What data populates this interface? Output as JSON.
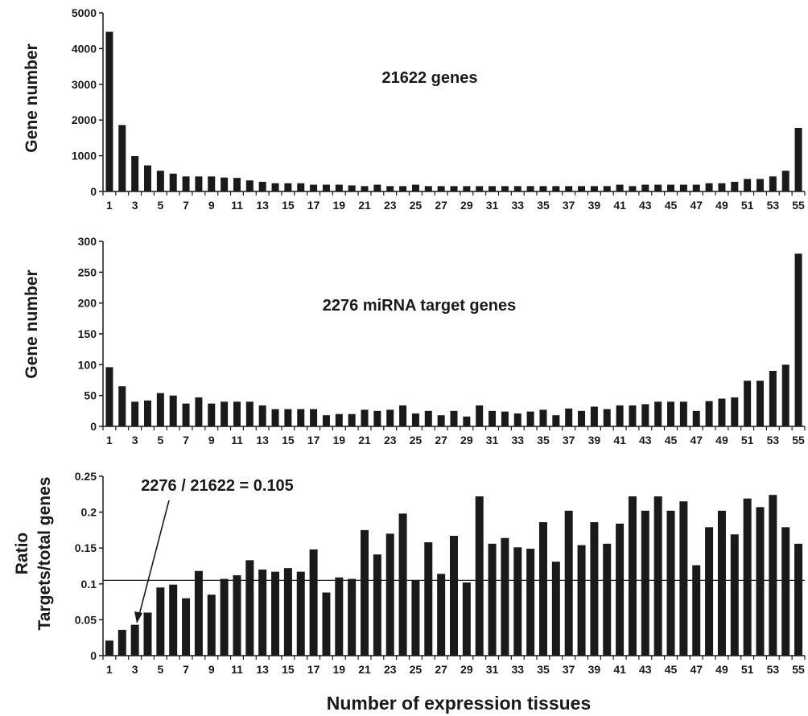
{
  "chart_data": [
    {
      "type": "bar",
      "annotation": "21622 genes",
      "ylabel": "Gene number",
      "xlabel": "",
      "ylim": [
        0,
        5000
      ],
      "yticks": [
        0,
        1000,
        2000,
        3000,
        4000,
        5000
      ],
      "x": [
        1,
        2,
        3,
        4,
        5,
        6,
        7,
        8,
        9,
        10,
        11,
        12,
        13,
        14,
        15,
        16,
        17,
        18,
        19,
        20,
        21,
        22,
        23,
        24,
        25,
        26,
        27,
        28,
        29,
        30,
        31,
        32,
        33,
        34,
        35,
        36,
        37,
        38,
        39,
        40,
        41,
        42,
        43,
        44,
        45,
        46,
        47,
        48,
        49,
        50,
        51,
        52,
        53,
        54,
        55
      ],
      "xtick_labels": [
        "1",
        "3",
        "5",
        "7",
        "9",
        "11",
        "13",
        "15",
        "17",
        "19",
        "21",
        "23",
        "25",
        "27",
        "29",
        "31",
        "33",
        "35",
        "37",
        "39",
        "41",
        "43",
        "45",
        "47",
        "49",
        "51",
        "53",
        "55"
      ],
      "values": [
        4470,
        1860,
        990,
        730,
        580,
        500,
        420,
        420,
        420,
        390,
        380,
        310,
        270,
        230,
        230,
        230,
        190,
        190,
        190,
        170,
        150,
        190,
        150,
        150,
        190,
        150,
        150,
        150,
        150,
        150,
        150,
        150,
        150,
        150,
        150,
        150,
        150,
        150,
        150,
        150,
        190,
        150,
        190,
        190,
        190,
        190,
        190,
        230,
        230,
        270,
        350,
        350,
        420,
        580,
        1780
      ]
    },
    {
      "type": "bar",
      "annotation": "2276 miRNA target genes",
      "ylabel": "Gene number",
      "xlabel": "",
      "ylim": [
        0,
        300
      ],
      "yticks": [
        0,
        50,
        100,
        150,
        200,
        250,
        300
      ],
      "x": [
        1,
        2,
        3,
        4,
        5,
        6,
        7,
        8,
        9,
        10,
        11,
        12,
        13,
        14,
        15,
        16,
        17,
        18,
        19,
        20,
        21,
        22,
        23,
        24,
        25,
        26,
        27,
        28,
        29,
        30,
        31,
        32,
        33,
        34,
        35,
        36,
        37,
        38,
        39,
        40,
        41,
        42,
        43,
        44,
        45,
        46,
        47,
        48,
        49,
        50,
        51,
        52,
        53,
        54,
        55
      ],
      "xtick_labels": [
        "1",
        "3",
        "5",
        "7",
        "9",
        "11",
        "13",
        "15",
        "17",
        "19",
        "21",
        "23",
        "25",
        "27",
        "29",
        "31",
        "33",
        "35",
        "37",
        "39",
        "41",
        "43",
        "45",
        "47",
        "49",
        "51",
        "53",
        "55"
      ],
      "values": [
        96,
        65,
        40,
        42,
        54,
        50,
        37,
        47,
        37,
        40,
        40,
        40,
        34,
        28,
        28,
        28,
        28,
        18,
        20,
        20,
        27,
        25,
        27,
        34,
        21,
        25,
        18,
        25,
        16,
        34,
        25,
        24,
        21,
        24,
        27,
        18,
        29,
        25,
        32,
        28,
        34,
        34,
        36,
        40,
        40,
        40,
        25,
        41,
        45,
        47,
        74,
        74,
        90,
        100,
        280
      ]
    },
    {
      "type": "bar",
      "annotation": "2276 / 21622 = 0.105",
      "ylabel": "Ratio",
      "ylabel2": "Targets/total genes",
      "xlabel": "Number of expression tissues",
      "ylim": [
        0,
        0.25
      ],
      "yticks": [
        "0",
        "0.05",
        "0.1",
        "0.15",
        "0.2",
        "0.25"
      ],
      "reference_line": 0.105,
      "x": [
        1,
        2,
        3,
        4,
        5,
        6,
        7,
        8,
        9,
        10,
        11,
        12,
        13,
        14,
        15,
        16,
        17,
        18,
        19,
        20,
        21,
        22,
        23,
        24,
        25,
        26,
        27,
        28,
        29,
        30,
        31,
        32,
        33,
        34,
        35,
        36,
        37,
        38,
        39,
        40,
        41,
        42,
        43,
        44,
        45,
        46,
        47,
        48,
        49,
        50,
        51,
        52,
        53,
        54,
        55
      ],
      "xtick_labels": [
        "1",
        "3",
        "5",
        "7",
        "9",
        "11",
        "13",
        "15",
        "17",
        "19",
        "21",
        "23",
        "25",
        "27",
        "29",
        "31",
        "33",
        "35",
        "37",
        "39",
        "41",
        "43",
        "45",
        "47",
        "49",
        "51",
        "53",
        "55"
      ],
      "values": [
        0.021,
        0.036,
        0.043,
        0.06,
        0.095,
        0.099,
        0.08,
        0.118,
        0.085,
        0.107,
        0.112,
        0.133,
        0.12,
        0.117,
        0.122,
        0.117,
        0.148,
        0.088,
        0.109,
        0.107,
        0.175,
        0.141,
        0.17,
        0.198,
        0.105,
        0.158,
        0.114,
        0.167,
        0.102,
        0.222,
        0.156,
        0.164,
        0.151,
        0.149,
        0.186,
        0.131,
        0.202,
        0.154,
        0.186,
        0.156,
        0.184,
        0.222,
        0.202,
        0.222,
        0.202,
        0.215,
        0.126,
        0.179,
        0.202,
        0.169,
        0.219,
        0.207,
        0.224,
        0.179,
        0.156
      ]
    }
  ]
}
